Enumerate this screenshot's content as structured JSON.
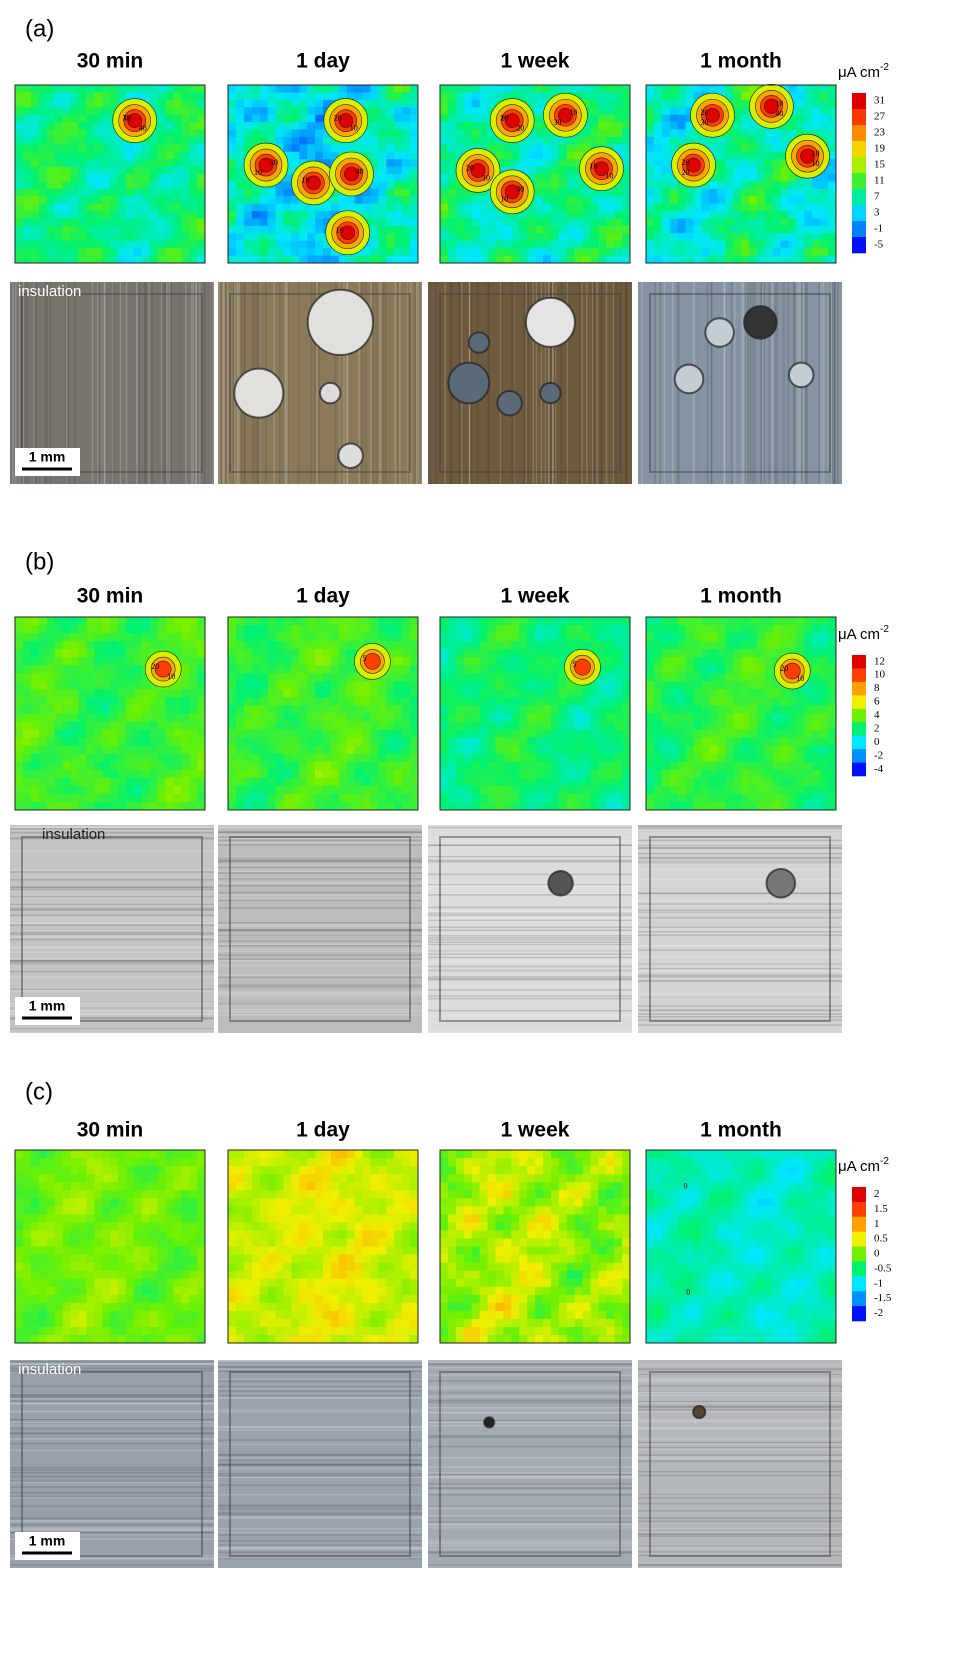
{
  "panels": [
    {
      "label": "(a)",
      "columns": [
        "30 min",
        "1 day",
        "1 week",
        "1 month"
      ],
      "colorbar": {
        "unit": "μA cm",
        "exponent": "-2",
        "ticks": [
          31,
          27,
          23,
          19,
          15,
          11,
          7,
          3,
          -1,
          -5
        ]
      },
      "contour_labels": [
        [
          "32",
          "48",
          "16"
        ],
        [
          "20",
          "30",
          "10",
          "40",
          "10",
          "10",
          "10"
        ],
        [
          "20",
          "10",
          "20",
          "30",
          "10",
          "20",
          "30",
          "10",
          "10",
          "10",
          "10"
        ],
        [
          "20",
          "10",
          "20",
          "10",
          "30",
          "40",
          "20",
          "10"
        ]
      ],
      "insulation": "insulation",
      "scale": "1 mm"
    },
    {
      "label": "(b)",
      "columns": [
        "30 min",
        "1 day",
        "1 week",
        "1 month"
      ],
      "colorbar": {
        "unit": "μA cm",
        "exponent": "-2",
        "ticks": [
          12,
          10,
          8,
          6,
          4,
          2,
          0,
          -2,
          -4
        ]
      },
      "contour_labels": [
        [
          "20",
          "10"
        ],
        [
          "5"
        ],
        [
          "5"
        ],
        [
          "20",
          "10"
        ]
      ],
      "insulation": "insulation",
      "scale": "1 mm"
    },
    {
      "label": "(c)",
      "columns": [
        "30 min",
        "1 day",
        "1 week",
        "1 month"
      ],
      "colorbar": {
        "unit": "μA cm",
        "exponent": "-2",
        "ticks": [
          2,
          1.5,
          1,
          0.5,
          0,
          -0.5,
          -1,
          -1.5,
          -2
        ]
      },
      "contour_labels": [
        [],
        [],
        [],
        [
          "0",
          "0"
        ]
      ],
      "insulation": "insulation",
      "scale": "1 mm"
    }
  ]
}
